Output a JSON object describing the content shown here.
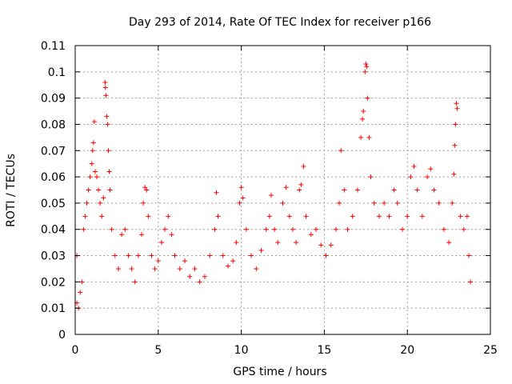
{
  "chart_data": {
    "type": "scatter",
    "title": "Day 293 of 2014, Rate Of TEC Index for receiver p166",
    "xlabel": "GPS time / hours",
    "ylabel": "ROTI / TECUs",
    "xlim": [
      0,
      25
    ],
    "ylim": [
      0,
      0.11
    ],
    "x_ticks": [
      "0",
      "5",
      "10",
      "15",
      "20",
      "25"
    ],
    "x_tick_values": [
      0,
      5,
      10,
      15,
      20,
      25
    ],
    "y_ticks": [
      "0",
      "0.01",
      "0.02",
      "0.03",
      "0.04",
      "0.05",
      "0.06",
      "0.07",
      "0.08",
      "0.09",
      "0.1",
      "0.11"
    ],
    "y_tick_values": [
      0,
      0.01,
      0.02,
      0.03,
      0.04,
      0.05,
      0.06,
      0.07,
      0.08,
      0.09,
      0.1,
      0.11
    ],
    "grid": true,
    "marker": "+",
    "color": "#ff0000",
    "series": [
      {
        "points": [
          [
            0.1,
            0.03
          ],
          [
            0.1,
            0.012
          ],
          [
            0.2,
            0.01
          ],
          [
            0.3,
            0.016
          ],
          [
            0.4,
            0.02
          ],
          [
            0.5,
            0.04
          ],
          [
            0.6,
            0.045
          ],
          [
            0.7,
            0.05
          ],
          [
            0.8,
            0.055
          ],
          [
            0.9,
            0.06
          ],
          [
            1.0,
            0.065
          ],
          [
            1.05,
            0.07
          ],
          [
            1.1,
            0.073
          ],
          [
            1.15,
            0.081
          ],
          [
            1.2,
            0.062
          ],
          [
            1.3,
            0.06
          ],
          [
            1.4,
            0.055
          ],
          [
            1.5,
            0.05
          ],
          [
            1.6,
            0.045
          ],
          [
            1.7,
            0.052
          ],
          [
            1.8,
            0.096
          ],
          [
            1.82,
            0.094
          ],
          [
            1.85,
            0.091
          ],
          [
            1.9,
            0.083
          ],
          [
            1.95,
            0.08
          ],
          [
            2.0,
            0.07
          ],
          [
            2.05,
            0.062
          ],
          [
            2.1,
            0.055
          ],
          [
            2.2,
            0.04
          ],
          [
            2.4,
            0.03
          ],
          [
            2.6,
            0.025
          ],
          [
            2.8,
            0.038
          ],
          [
            3.0,
            0.04
          ],
          [
            3.2,
            0.03
          ],
          [
            3.4,
            0.025
          ],
          [
            3.6,
            0.02
          ],
          [
            3.8,
            0.03
          ],
          [
            4.0,
            0.038
          ],
          [
            4.1,
            0.05
          ],
          [
            4.2,
            0.056
          ],
          [
            4.3,
            0.055
          ],
          [
            4.4,
            0.045
          ],
          [
            4.6,
            0.03
          ],
          [
            4.8,
            0.025
          ],
          [
            5.0,
            0.028
          ],
          [
            5.2,
            0.035
          ],
          [
            5.4,
            0.04
          ],
          [
            5.6,
            0.045
          ],
          [
            5.8,
            0.038
          ],
          [
            6.0,
            0.03
          ],
          [
            6.3,
            0.025
          ],
          [
            6.6,
            0.028
          ],
          [
            6.9,
            0.022
          ],
          [
            7.2,
            0.025
          ],
          [
            7.5,
            0.02
          ],
          [
            7.8,
            0.022
          ],
          [
            8.1,
            0.03
          ],
          [
            8.4,
            0.04
          ],
          [
            8.5,
            0.054
          ],
          [
            8.6,
            0.045
          ],
          [
            8.9,
            0.03
          ],
          [
            9.2,
            0.026
          ],
          [
            9.5,
            0.028
          ],
          [
            9.7,
            0.035
          ],
          [
            9.9,
            0.05
          ],
          [
            10.0,
            0.056
          ],
          [
            10.1,
            0.052
          ],
          [
            10.3,
            0.04
          ],
          [
            10.6,
            0.03
          ],
          [
            10.9,
            0.025
          ],
          [
            11.2,
            0.032
          ],
          [
            11.5,
            0.04
          ],
          [
            11.7,
            0.045
          ],
          [
            11.8,
            0.053
          ],
          [
            12.0,
            0.04
          ],
          [
            12.2,
            0.035
          ],
          [
            12.5,
            0.05
          ],
          [
            12.7,
            0.056
          ],
          [
            12.9,
            0.045
          ],
          [
            13.1,
            0.04
          ],
          [
            13.3,
            0.035
          ],
          [
            13.5,
            0.055
          ],
          [
            13.6,
            0.057
          ],
          [
            13.75,
            0.064
          ],
          [
            13.9,
            0.045
          ],
          [
            14.2,
            0.038
          ],
          [
            14.5,
            0.04
          ],
          [
            14.8,
            0.034
          ],
          [
            15.1,
            0.03
          ],
          [
            15.4,
            0.034
          ],
          [
            15.7,
            0.04
          ],
          [
            15.9,
            0.05
          ],
          [
            16.0,
            0.07
          ],
          [
            16.2,
            0.055
          ],
          [
            16.4,
            0.04
          ],
          [
            16.7,
            0.045
          ],
          [
            17.0,
            0.055
          ],
          [
            17.2,
            0.075
          ],
          [
            17.3,
            0.082
          ],
          [
            17.35,
            0.085
          ],
          [
            17.45,
            0.1
          ],
          [
            17.5,
            0.103
          ],
          [
            17.55,
            0.102
          ],
          [
            17.6,
            0.09
          ],
          [
            17.7,
            0.075
          ],
          [
            17.8,
            0.06
          ],
          [
            18.0,
            0.05
          ],
          [
            18.3,
            0.045
          ],
          [
            18.6,
            0.05
          ],
          [
            18.9,
            0.045
          ],
          [
            19.2,
            0.055
          ],
          [
            19.4,
            0.05
          ],
          [
            19.7,
            0.04
          ],
          [
            20.0,
            0.045
          ],
          [
            20.2,
            0.06
          ],
          [
            20.4,
            0.064
          ],
          [
            20.6,
            0.055
          ],
          [
            20.9,
            0.045
          ],
          [
            21.2,
            0.06
          ],
          [
            21.4,
            0.063
          ],
          [
            21.6,
            0.055
          ],
          [
            21.9,
            0.05
          ],
          [
            22.2,
            0.04
          ],
          [
            22.5,
            0.035
          ],
          [
            22.7,
            0.05
          ],
          [
            22.8,
            0.061
          ],
          [
            22.85,
            0.072
          ],
          [
            22.9,
            0.08
          ],
          [
            22.95,
            0.088
          ],
          [
            23.0,
            0.086
          ],
          [
            23.2,
            0.045
          ],
          [
            23.4,
            0.04
          ],
          [
            23.6,
            0.045
          ],
          [
            23.7,
            0.03
          ],
          [
            23.8,
            0.02
          ]
        ]
      }
    ]
  }
}
